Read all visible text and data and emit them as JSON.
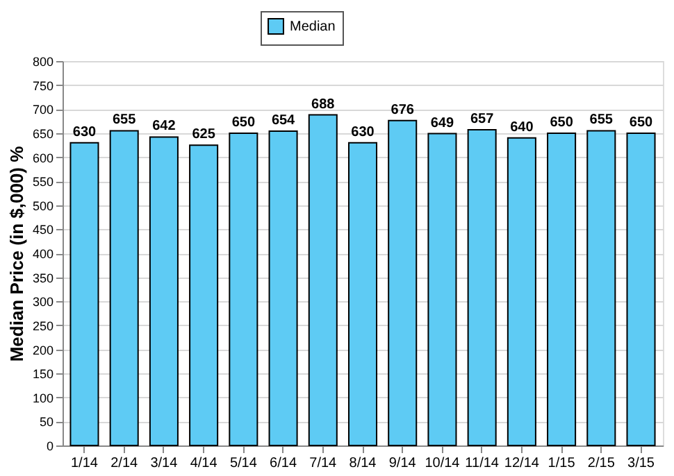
{
  "chart_data": {
    "type": "bar",
    "ylabel": "Median Price (in $,000) %",
    "categories": [
      "1/14",
      "2/14",
      "3/14",
      "4/14",
      "5/14",
      "6/14",
      "7/14",
      "8/14",
      "9/14",
      "10/14",
      "11/14",
      "12/14",
      "1/15",
      "2/15",
      "3/15"
    ],
    "series": [
      {
        "name": "Median",
        "color": "#5ecbf4",
        "values": [
          630,
          655,
          642,
          625,
          650,
          654,
          688,
          630,
          676,
          649,
          657,
          640,
          650,
          655,
          650
        ]
      }
    ],
    "ylim": [
      0,
      800
    ],
    "yticks": [
      0,
      50,
      100,
      150,
      200,
      250,
      300,
      350,
      400,
      450,
      500,
      550,
      600,
      650,
      700,
      750,
      800
    ],
    "grid": "y",
    "legend": "top",
    "data_labels": true
  }
}
